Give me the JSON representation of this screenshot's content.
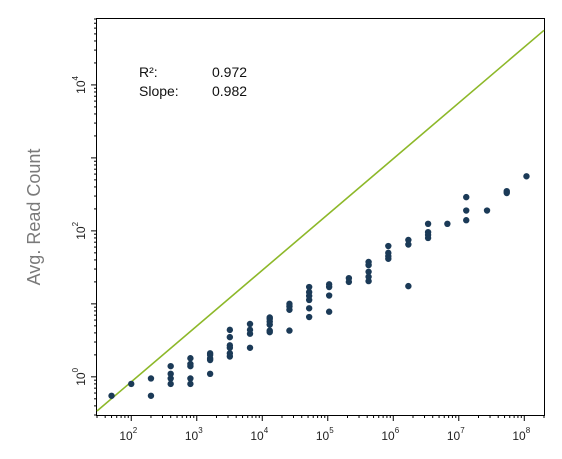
{
  "chart_data": {
    "type": "scatter",
    "title": "",
    "xlabel": "",
    "ylabel": "Avg. Read Count",
    "x_scale": "log",
    "y_scale": "log",
    "xlim": [
      30,
      200000000
    ],
    "ylim": [
      0.3,
      80000
    ],
    "x_ticks": [
      {
        "base": "10",
        "exp": "2",
        "value": 100
      },
      {
        "base": "10",
        "exp": "3",
        "value": 1000
      },
      {
        "base": "10",
        "exp": "4",
        "value": 10000
      },
      {
        "base": "10",
        "exp": "5",
        "value": 100000
      },
      {
        "base": "10",
        "exp": "6",
        "value": 1000000
      },
      {
        "base": "10",
        "exp": "7",
        "value": 10000000
      },
      {
        "base": "10",
        "exp": "8",
        "value": 100000000
      }
    ],
    "y_ticks": [
      {
        "base": "10",
        "exp": "0",
        "value": 1
      },
      {
        "base": "10",
        "exp": "2",
        "value": 100
      },
      {
        "base": "10",
        "exp": "4",
        "value": 10000
      }
    ],
    "grid": false,
    "legend": "none",
    "stats": {
      "r2_label": "R²:",
      "r2_value": "0.972",
      "slope_label": "Slope:",
      "slope_value": "0.982"
    },
    "fit_line": {
      "x": [
        30,
        200000000
      ],
      "y": [
        0.34,
        56000
      ],
      "color": "#8db829"
    },
    "point_color": "#1b3a57",
    "points": [
      [
        50,
        0.55
      ],
      [
        100,
        0.8
      ],
      [
        200,
        0.55
      ],
      [
        200,
        0.95
      ],
      [
        400,
        0.8
      ],
      [
        400,
        0.95
      ],
      [
        400,
        1.1
      ],
      [
        400,
        1.4
      ],
      [
        800,
        0.8
      ],
      [
        800,
        0.95
      ],
      [
        800,
        1.4
      ],
      [
        800,
        1.5
      ],
      [
        800,
        1.8
      ],
      [
        1600,
        1.1
      ],
      [
        1600,
        1.7
      ],
      [
        1600,
        1.8
      ],
      [
        1600,
        2.0
      ],
      [
        1600,
        2.1
      ],
      [
        3200,
        1.9
      ],
      [
        3200,
        2.1
      ],
      [
        3200,
        2.5
      ],
      [
        3200,
        2.7
      ],
      [
        3200,
        3.5
      ],
      [
        3200,
        4.4
      ],
      [
        6500,
        2.5
      ],
      [
        6500,
        3.9
      ],
      [
        6500,
        4.4
      ],
      [
        6500,
        5.3
      ],
      [
        13000,
        4.1
      ],
      [
        13000,
        4.3
      ],
      [
        13000,
        5.2
      ],
      [
        13000,
        5.7
      ],
      [
        13000,
        6.2
      ],
      [
        13000,
        6.5
      ],
      [
        26000,
        4.3
      ],
      [
        26000,
        8.3
      ],
      [
        26000,
        9.2
      ],
      [
        26000,
        10.0
      ],
      [
        52000,
        6.6
      ],
      [
        52000,
        8.7
      ],
      [
        52000,
        11.3
      ],
      [
        52000,
        12.8
      ],
      [
        52000,
        14.5
      ],
      [
        52000,
        17.0
      ],
      [
        105000,
        7.8
      ],
      [
        105000,
        13.0
      ],
      [
        105000,
        17.0
      ],
      [
        105000,
        18.5
      ],
      [
        210000,
        20.0
      ],
      [
        210000,
        22.5
      ],
      [
        420000,
        20.5
      ],
      [
        420000,
        23.5
      ],
      [
        420000,
        27.5
      ],
      [
        420000,
        34.0
      ],
      [
        420000,
        37.5
      ],
      [
        840000,
        41.5
      ],
      [
        840000,
        45.0
      ],
      [
        840000,
        50.0
      ],
      [
        840000,
        62.0
      ],
      [
        1700000,
        17.5
      ],
      [
        1700000,
        65.0
      ],
      [
        1700000,
        75.0
      ],
      [
        3400000,
        80.0
      ],
      [
        3400000,
        88.0
      ],
      [
        3400000,
        96.0
      ],
      [
        3400000,
        125.0
      ],
      [
        6700000,
        125.0
      ],
      [
        13000000,
        140.0
      ],
      [
        13000000,
        190.0
      ],
      [
        13000000,
        290.0
      ],
      [
        27000000,
        190.0
      ],
      [
        54000000,
        330.0
      ],
      [
        54000000,
        350.0
      ],
      [
        108000000,
        560.0
      ]
    ]
  }
}
